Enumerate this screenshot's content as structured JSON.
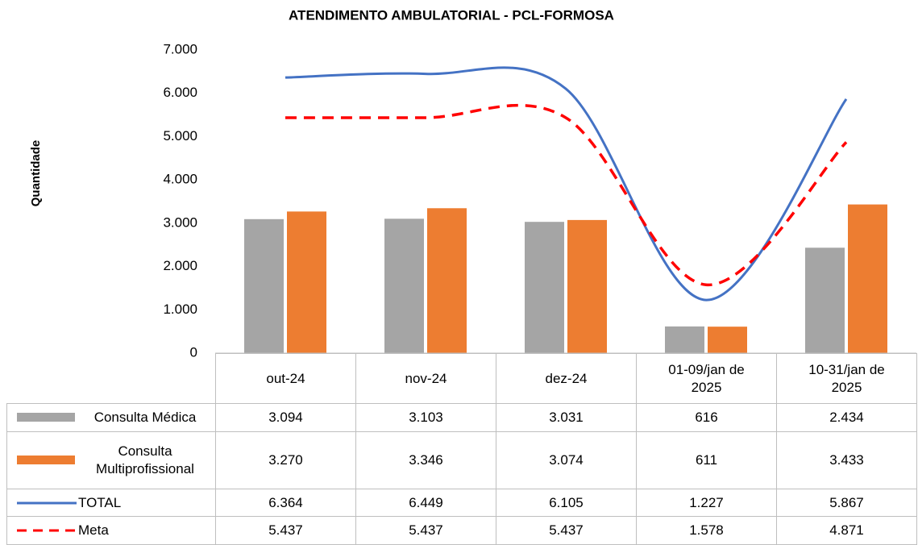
{
  "chart_data": {
    "type": "bar-line",
    "title": "ATENDIMENTO AMBULATORIAL - PCL-FORMOSA",
    "y_label": "Quantidade",
    "categories": [
      "out-24",
      "nov-24",
      "dez-24",
      "01-09/jan de 2025",
      "10-31/jan de 2025"
    ],
    "series": [
      {
        "name": "Consulta Médica",
        "type": "bar",
        "color": "#a5a5a5",
        "values": [
          3094,
          3103,
          3031,
          616,
          2434
        ],
        "value_labels": [
          "3.094",
          "3.103",
          "3.031",
          "616",
          "2.434"
        ]
      },
      {
        "name": "Consulta Multiprofissional",
        "type": "bar",
        "color": "#ed7d31",
        "values": [
          3270,
          3346,
          3074,
          611,
          3433
        ],
        "value_labels": [
          "3.270",
          "3.346",
          "3.074",
          "611",
          "3.433"
        ]
      },
      {
        "name": "TOTAL",
        "type": "line",
        "color": "#4472c4",
        "values": [
          6364,
          6449,
          6105,
          1227,
          5867
        ],
        "value_labels": [
          "6.364",
          "6.449",
          "6.105",
          "1.227",
          "5.867"
        ]
      },
      {
        "name": "Meta",
        "type": "dashed-line",
        "color": "#ff0000",
        "values": [
          5437,
          5437,
          5437,
          1578,
          4871
        ],
        "value_labels": [
          "5.437",
          "5.437",
          "5.437",
          "1.578",
          "4.871"
        ]
      }
    ],
    "ylim": [
      0,
      7000
    ],
    "yticks": [
      0,
      {
        "value": 1000,
        "label": "1.000"
      },
      {
        "value": 2000,
        "label": "2.000"
      },
      {
        "value": 3000,
        "label": "3.000"
      },
      {
        "value": 4000,
        "label": "4.000"
      },
      {
        "value": 5000,
        "label": "5.000"
      },
      {
        "value": 6000,
        "label": "6.000"
      },
      {
        "value": 7000,
        "label": "7.000"
      }
    ],
    "grid": false,
    "data_table": true
  }
}
